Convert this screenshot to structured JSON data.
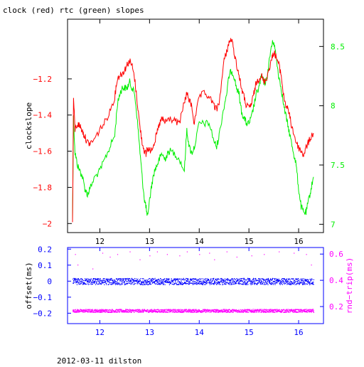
{
  "title": "clock (red) rtc (green) slopes",
  "footer": "2012-03-11 dilston",
  "colors": {
    "clock": "#ff0000",
    "rtc": "#00ee00",
    "offset": "#0000ff",
    "rtt": "#ff00ff",
    "axis": "#000000",
    "bottom_axis": "#0000ff"
  },
  "chart_data": [
    {
      "type": "line",
      "title": "clock (red) rtc (green) slopes",
      "xlabel": "",
      "ylabel": "clockslope",
      "y2label": "",
      "xlim": [
        11.35,
        16.5
      ],
      "ylim": [
        -2.05,
        -0.87
      ],
      "y2lim": [
        6.93,
        8.73
      ],
      "xticks": [
        12,
        13,
        14,
        15,
        16
      ],
      "yticks": [
        -2,
        -1.8,
        -1.6,
        -1.4,
        -1.2
      ],
      "y2ticks": [
        7,
        7.5,
        8,
        8.5
      ],
      "grid": false,
      "series": [
        {
          "name": "clock",
          "axis": "left",
          "x": [
            11.45,
            11.47,
            11.5,
            11.55,
            11.6,
            11.65,
            11.7,
            11.75,
            11.8,
            11.9,
            12.0,
            12.1,
            12.2,
            12.3,
            12.35,
            12.4,
            12.45,
            12.5,
            12.55,
            12.6,
            12.65,
            12.7,
            12.75,
            12.8,
            12.85,
            12.9,
            12.93,
            12.95,
            13.0,
            13.05,
            13.1,
            13.15,
            13.2,
            13.25,
            13.3,
            13.35,
            13.4,
            13.5,
            13.6,
            13.7,
            13.75,
            13.8,
            13.85,
            13.9,
            14.0,
            14.1,
            14.2,
            14.3,
            14.35,
            14.4,
            14.5,
            14.55,
            14.6,
            14.65,
            14.7,
            14.75,
            14.8,
            14.85,
            14.9,
            14.95,
            15.0,
            15.05,
            15.1,
            15.15,
            15.2,
            15.25,
            15.3,
            15.35,
            15.4,
            15.45,
            15.5,
            15.55,
            15.6,
            15.65,
            15.7,
            15.75,
            15.8,
            15.85,
            15.9,
            15.95,
            16.0,
            16.05,
            16.1,
            16.15,
            16.2,
            16.25,
            16.3
          ],
          "y": [
            -2.0,
            -1.3,
            -1.48,
            -1.45,
            -1.46,
            -1.49,
            -1.52,
            -1.55,
            -1.56,
            -1.53,
            -1.48,
            -1.44,
            -1.38,
            -1.3,
            -1.2,
            -1.18,
            -1.17,
            -1.15,
            -1.12,
            -1.1,
            -1.13,
            -1.2,
            -1.32,
            -1.45,
            -1.55,
            -1.6,
            -1.62,
            -1.58,
            -1.6,
            -1.58,
            -1.55,
            -1.5,
            -1.45,
            -1.42,
            -1.44,
            -1.43,
            -1.42,
            -1.43,
            -1.45,
            -1.33,
            -1.28,
            -1.32,
            -1.35,
            -1.45,
            -1.3,
            -1.28,
            -1.3,
            -1.35,
            -1.37,
            -1.33,
            -1.1,
            -1.05,
            -1.0,
            -0.98,
            -1.05,
            -1.12,
            -1.18,
            -1.25,
            -1.3,
            -1.35,
            -1.36,
            -1.34,
            -1.28,
            -1.22,
            -1.2,
            -1.18,
            -1.22,
            -1.2,
            -1.15,
            -1.1,
            -1.05,
            -1.08,
            -1.12,
            -1.18,
            -1.3,
            -1.35,
            -1.38,
            -1.45,
            -1.5,
            -1.55,
            -1.58,
            -1.6,
            -1.62,
            -1.58,
            -1.55,
            -1.52,
            -1.5
          ]
        },
        {
          "name": "rtc",
          "axis": "right",
          "x": [
            11.45,
            11.47,
            11.5,
            11.55,
            11.6,
            11.65,
            11.7,
            11.75,
            11.8,
            11.9,
            12.0,
            12.1,
            12.2,
            12.3,
            12.35,
            12.4,
            12.45,
            12.5,
            12.55,
            12.6,
            12.65,
            12.7,
            12.75,
            12.8,
            12.85,
            12.9,
            12.93,
            12.95,
            13.0,
            13.05,
            13.1,
            13.15,
            13.2,
            13.25,
            13.3,
            13.35,
            13.4,
            13.5,
            13.6,
            13.7,
            13.75,
            13.8,
            13.85,
            13.9,
            14.0,
            14.1,
            14.2,
            14.3,
            14.35,
            14.4,
            14.5,
            14.55,
            14.6,
            14.65,
            14.7,
            14.75,
            14.8,
            14.85,
            14.9,
            14.95,
            15.0,
            15.05,
            15.1,
            15.15,
            15.2,
            15.25,
            15.3,
            15.35,
            15.4,
            15.45,
            15.5,
            15.55,
            15.6,
            15.65,
            15.7,
            15.75,
            15.8,
            15.85,
            15.9,
            15.95,
            16.0,
            16.05,
            16.1,
            16.15,
            16.2,
            16.25,
            16.3
          ],
          "y": [
            7.05,
            7.9,
            7.6,
            7.5,
            7.45,
            7.4,
            7.3,
            7.25,
            7.3,
            7.4,
            7.45,
            7.55,
            7.65,
            7.75,
            8.0,
            8.1,
            8.15,
            8.15,
            8.15,
            8.2,
            8.15,
            8.1,
            7.9,
            7.65,
            7.4,
            7.2,
            7.15,
            7.05,
            7.2,
            7.35,
            7.45,
            7.5,
            7.55,
            7.6,
            7.55,
            7.58,
            7.62,
            7.6,
            7.55,
            7.45,
            7.8,
            7.65,
            7.6,
            7.65,
            7.85,
            7.85,
            7.85,
            7.7,
            7.65,
            7.75,
            8.0,
            8.1,
            8.25,
            8.3,
            8.25,
            8.15,
            8.1,
            7.95,
            7.9,
            7.85,
            7.85,
            7.9,
            8.0,
            8.1,
            8.15,
            8.25,
            8.2,
            8.2,
            8.35,
            8.5,
            8.55,
            8.4,
            8.25,
            8.15,
            8.0,
            7.9,
            7.8,
            7.7,
            7.6,
            7.5,
            7.3,
            7.15,
            7.1,
            7.1,
            7.2,
            7.3,
            7.4
          ]
        }
      ]
    },
    {
      "type": "scatter",
      "xlabel": "",
      "ylabel": "offset(ms)",
      "y2label": "rnd−trip(ms)",
      "xlim": [
        11.35,
        16.5
      ],
      "ylim": [
        -0.265,
        0.21
      ],
      "y2lim": [
        0.07,
        0.65
      ],
      "xticks": [
        12,
        13,
        14,
        15,
        16
      ],
      "yticks": [
        -0.2,
        -0.1,
        0,
        0.1,
        0.2
      ],
      "y2ticks": [
        0.2,
        0.4,
        0.6
      ],
      "series": [
        {
          "name": "offset",
          "axis": "left",
          "mean": 0.0,
          "spread": 0.02,
          "x_range": [
            11.45,
            16.3
          ]
        },
        {
          "name": "rnd-trip",
          "axis": "right",
          "mean": 0.17,
          "spread": 0.012,
          "x_range": [
            11.45,
            16.3
          ],
          "outliers": [
            {
              "x": 11.5,
              "y": 0.6
            },
            {
              "x": 11.55,
              "y": 0.52
            },
            {
              "x": 11.85,
              "y": 0.49
            },
            {
              "x": 12.05,
              "y": 0.61
            },
            {
              "x": 12.2,
              "y": 0.58
            },
            {
              "x": 12.35,
              "y": 0.6
            },
            {
              "x": 12.6,
              "y": 0.62
            },
            {
              "x": 12.8,
              "y": 0.56
            },
            {
              "x": 13.0,
              "y": 0.59
            },
            {
              "x": 13.15,
              "y": 0.62
            },
            {
              "x": 13.35,
              "y": 0.6
            },
            {
              "x": 13.6,
              "y": 0.59
            },
            {
              "x": 13.75,
              "y": 0.62
            },
            {
              "x": 14.0,
              "y": 0.6
            },
            {
              "x": 14.2,
              "y": 0.61
            },
            {
              "x": 14.3,
              "y": 0.56
            },
            {
              "x": 14.55,
              "y": 0.62
            },
            {
              "x": 14.75,
              "y": 0.58
            },
            {
              "x": 15.05,
              "y": 0.59
            },
            {
              "x": 15.3,
              "y": 0.6
            },
            {
              "x": 15.6,
              "y": 0.62
            },
            {
              "x": 15.9,
              "y": 0.61
            },
            {
              "x": 16.15,
              "y": 0.6
            },
            {
              "x": 16.25,
              "y": 0.52
            }
          ]
        }
      ]
    }
  ]
}
